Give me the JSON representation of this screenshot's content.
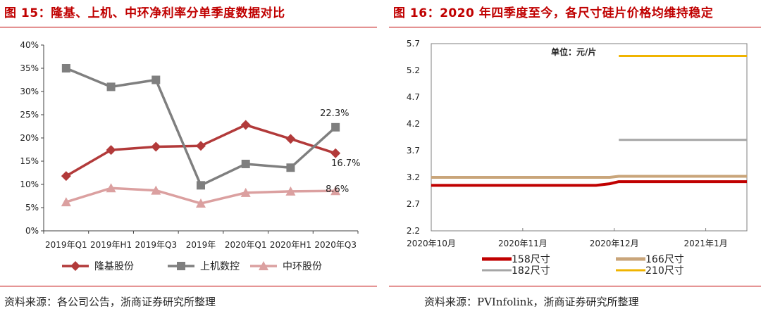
{
  "left": {
    "title": "图 15：隆基、上机、中环净利率分单季度数据对比",
    "source": "资料来源：各公司公告，浙商证券研究所整理",
    "chart_data": {
      "type": "line",
      "title": "图 15：隆基、上机、中环净利率分单季度数据对比",
      "categories": [
        "2019年Q1",
        "2019年H1",
        "2019年Q3",
        "2019年",
        "2020年Q1",
        "2020年H1",
        "2020年Q3"
      ],
      "y_ticks": [
        "0%",
        "5%",
        "10%",
        "15%",
        "20%",
        "25%",
        "30%",
        "35%",
        "40%"
      ],
      "ylim": [
        0,
        40
      ],
      "legend_position": "bottom",
      "series": [
        {
          "name": "隆基股份",
          "color": "#b23a3a",
          "marker": "diamond",
          "values": [
            11.8,
            17.4,
            18.1,
            18.3,
            22.8,
            19.8,
            16.7
          ]
        },
        {
          "name": "上机数控",
          "color": "#7f7f7f",
          "marker": "square",
          "values": [
            35.0,
            31.0,
            32.5,
            9.8,
            14.4,
            13.6,
            22.3
          ]
        },
        {
          "name": "中环股份",
          "color": "#dba0a0",
          "marker": "triangle",
          "values": [
            6.2,
            9.2,
            8.7,
            5.9,
            8.2,
            8.5,
            8.6
          ]
        }
      ],
      "annotations": [
        {
          "text": "22.3%",
          "series": 1,
          "index": 6
        },
        {
          "text": "16.7%",
          "series": 0,
          "index": 6
        },
        {
          "text": "8.6%",
          "series": 2,
          "index": 6
        }
      ]
    }
  },
  "right": {
    "title": "图 16：2020 年四季度至今，各尺寸硅片价格均维持稳定",
    "source": "资料来源：PVInfolink，浙商证券研究所整理",
    "chart_data": {
      "type": "line",
      "title": "图 16：2020 年四季度至今，各尺寸硅片价格均维持稳定",
      "unit_label": "单位：元/片",
      "x_tick_labels": [
        "2020年10月",
        "2020年11月",
        "2020年12月",
        "2021年1月"
      ],
      "x_range": [
        0,
        3.45
      ],
      "y_ticks": [
        "2.2",
        "2.7",
        "3.2",
        "3.7",
        "4.2",
        "4.7",
        "5.2",
        "5.7"
      ],
      "ylim": [
        2.2,
        5.7
      ],
      "legend_position": "bottom",
      "series": [
        {
          "name": "158尺寸",
          "color": "#c00000",
          "x": [
            0,
            1.0,
            1.8,
            1.95,
            2.05,
            3.45
          ],
          "values": [
            3.05,
            3.05,
            3.05,
            3.08,
            3.12,
            3.12
          ]
        },
        {
          "name": "166尺寸",
          "color": "#c9a57a",
          "x": [
            0,
            1.0,
            1.8,
            1.95,
            2.05,
            3.45
          ],
          "values": [
            3.2,
            3.2,
            3.2,
            3.2,
            3.22,
            3.22
          ]
        },
        {
          "name": "182尺寸",
          "color": "#a6a6a6",
          "x": [
            2.05,
            3.45
          ],
          "values": [
            3.9,
            3.9
          ]
        },
        {
          "name": "210尺寸",
          "color": "#f0b400",
          "x": [
            2.05,
            3.45
          ],
          "values": [
            5.47,
            5.47
          ]
        }
      ]
    }
  }
}
